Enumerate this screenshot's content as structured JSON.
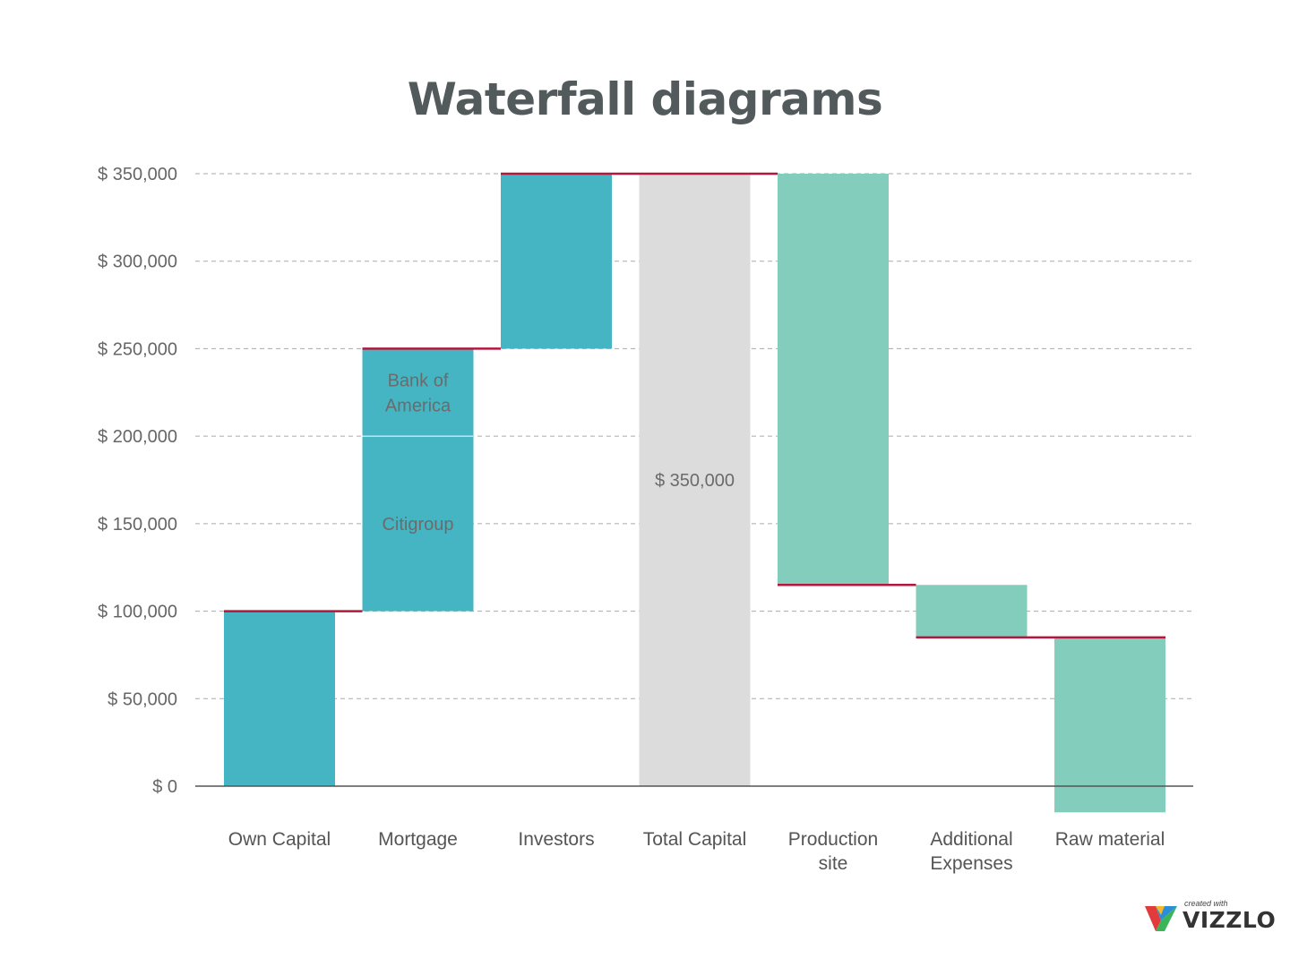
{
  "chart_data": {
    "type": "bar",
    "subtype": "waterfall",
    "title": "Waterfall diagrams",
    "ylim": [
      0,
      350000
    ],
    "y_ticks": [
      "$ 0",
      "$ 50,000",
      "$ 100,000",
      "$ 150,000",
      "$ 200,000",
      "$ 250,000",
      "$ 300,000",
      "$ 350,000"
    ],
    "y_tick_values": [
      0,
      50000,
      100000,
      150000,
      200000,
      250000,
      300000,
      350000
    ],
    "grid": true,
    "bars": [
      {
        "category": "Own Capital",
        "label_lines": [
          "Own Capital"
        ],
        "start": 0,
        "end": 100000,
        "kind": "increase"
      },
      {
        "category": "Mortgage",
        "label_lines": [
          "Mortgage"
        ],
        "start": 100000,
        "end": 250000,
        "kind": "increase",
        "segments": [
          {
            "name_lines": [
              "Citigroup"
            ],
            "start": 100000,
            "end": 200000
          },
          {
            "name_lines": [
              "Bank of",
              "America"
            ],
            "start": 200000,
            "end": 250000
          }
        ]
      },
      {
        "category": "Investors",
        "label_lines": [
          "Investors"
        ],
        "start": 250000,
        "end": 350000,
        "kind": "increase"
      },
      {
        "category": "Total Capital",
        "label_lines": [
          "Total Capital"
        ],
        "start": 0,
        "end": 350000,
        "kind": "total",
        "value_label": "$ 350,000"
      },
      {
        "category": "Production site",
        "label_lines": [
          "Production",
          "site"
        ],
        "start": 350000,
        "end": 115000,
        "kind": "decrease"
      },
      {
        "category": "Additional Expenses",
        "label_lines": [
          "Additional",
          "Expenses"
        ],
        "start": 115000,
        "end": 85000,
        "kind": "decrease"
      },
      {
        "category": "Raw material",
        "label_lines": [
          "Raw material"
        ],
        "start": 85000,
        "end": -15000,
        "kind": "decrease"
      }
    ],
    "colors": {
      "increase": "#46b5c3",
      "decrease": "#83cdbc",
      "total": "#dcdcdc",
      "connector": "#b5173c",
      "grid": "#aaaaaa",
      "axis": "#555555"
    }
  },
  "brand": {
    "small": "created with",
    "name": "VIZZLO"
  }
}
